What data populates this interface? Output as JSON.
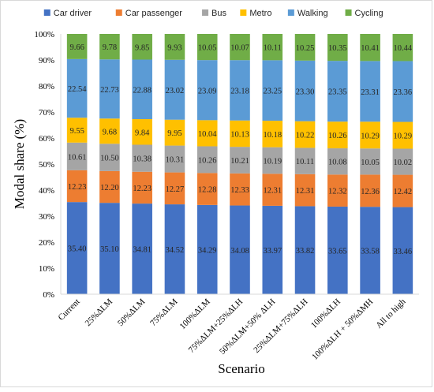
{
  "chart_data": {
    "type": "bar",
    "stacked": "percent",
    "title": "",
    "xlabel": "Scenario",
    "ylabel": "Modal share (%)",
    "ylim": [
      0,
      100
    ],
    "yticks": [
      "0%",
      "10%",
      "20%",
      "30%",
      "40%",
      "50%",
      "60%",
      "70%",
      "80%",
      "90%",
      "100%"
    ],
    "grid": false,
    "legend_position": "top",
    "categories": [
      "Current",
      "25%ΔLM",
      "50%ΔLM",
      "75%ΔLM",
      "100%ΔLM",
      "75%ΔLM+25%ΔLH",
      "50%ΔLM+50% ΔLH",
      "25%ΔLM+75%ΔLH",
      "100%ΔLH",
      "100%ΔLH + 50%ΔMH",
      "All to high"
    ],
    "series": [
      {
        "name": "Car driver",
        "color": "#4472c4",
        "values": [
          35.4,
          35.1,
          34.81,
          34.52,
          34.29,
          34.08,
          33.97,
          33.82,
          33.65,
          33.58,
          33.46
        ]
      },
      {
        "name": "Car passenger",
        "color": "#ed7d31",
        "values": [
          12.23,
          12.2,
          12.23,
          12.27,
          12.28,
          12.33,
          12.31,
          12.31,
          12.32,
          12.36,
          12.42
        ]
      },
      {
        "name": "Bus",
        "color": "#a5a5a5",
        "values": [
          10.61,
          10.5,
          10.38,
          10.31,
          10.26,
          10.21,
          10.19,
          10.11,
          10.08,
          10.05,
          10.02
        ]
      },
      {
        "name": "Metro",
        "color": "#ffc000",
        "values": [
          9.55,
          9.68,
          9.84,
          9.95,
          10.04,
          10.13,
          10.18,
          10.22,
          10.26,
          10.29,
          10.29
        ]
      },
      {
        "name": "Walking",
        "color": "#5b9bd5",
        "values": [
          22.54,
          22.73,
          22.88,
          23.02,
          23.09,
          23.18,
          23.25,
          23.3,
          23.35,
          23.31,
          23.36
        ]
      },
      {
        "name": "Cycling",
        "color": "#70ad47",
        "values": [
          9.66,
          9.78,
          9.85,
          9.93,
          10.05,
          10.07,
          10.11,
          10.25,
          10.35,
          10.41,
          10.44
        ]
      }
    ],
    "value_labels": [
      [
        "35.40",
        "35.10",
        "34.81",
        "34.52",
        "34.29",
        "34.08",
        "33.97",
        "33.82",
        "33.65",
        "33.58",
        "33.46"
      ],
      [
        "12.23",
        "12.20",
        "12.23",
        "12.27",
        "12.28",
        "12.33",
        "12.31",
        "12.31",
        "12.32",
        "12.36",
        "12.42"
      ],
      [
        "10.61",
        "10.50",
        "10.38",
        "10.31",
        "10.26",
        "10.21",
        "10.19",
        "10.11",
        "10.08",
        "10.05",
        "10.02"
      ],
      [
        "9.55",
        "9.68",
        "9.84",
        "9.95",
        "10.04",
        "10.13",
        "10.18",
        "10.22",
        "10.26",
        "10.29",
        "10.29"
      ],
      [
        "22.54",
        "22.73",
        "22.88",
        "23.02",
        "23.09",
        "23.18",
        "23.25",
        "23.30",
        "23.35",
        "23.31",
        "23.36"
      ],
      [
        "9.66",
        "9.78",
        "9.85",
        "9.93",
        "10.05",
        "10.07",
        "10.11",
        "10.25",
        "10.35",
        "10.41",
        "10.44"
      ]
    ]
  }
}
